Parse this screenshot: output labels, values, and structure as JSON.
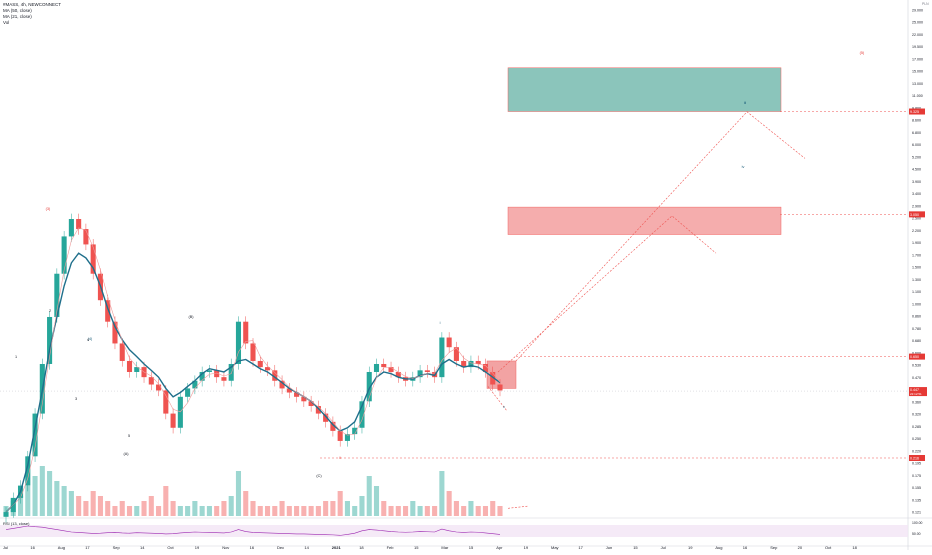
{
  "legend": {
    "symbol": "#MASS, 4h, NEWCONNECT",
    "ma1": "MA (50, close)",
    "ma2": "MA (21, close)",
    "vol": "Vol",
    "rsi": "RSI (13, close)"
  },
  "colors": {
    "up": "#26a69a",
    "down": "#ef5350",
    "ma_slow": "#1f6f8b",
    "ma_fast": "#ef9a9a",
    "target_box": "#7fbfb4",
    "resistance_box": "#f5a5a5",
    "dashed": "#ef5350",
    "rsi": "#9c27b0",
    "price_tag": "#e53935",
    "wave_label": "#1b5e7a"
  },
  "chart_data": {
    "type": "candlestick",
    "scale": "log",
    "x_tick_labels": [
      "Jul",
      "16",
      "Aug",
      "17",
      "Sep",
      "14",
      "Oct",
      "19",
      "Nov",
      "16",
      "Dec",
      "14",
      "2021",
      "18",
      "Feb",
      "15",
      "Mar",
      "15",
      "Apr",
      "19",
      "May",
      "17",
      "Jun",
      "15",
      "Jul",
      "19",
      "Aug",
      "16",
      "Sep",
      "20",
      "Oct",
      "18"
    ],
    "y_tick_labels": [
      "29.000",
      "25.000",
      "22.000",
      "19.500",
      "17.000",
      "15.000",
      "13.000",
      "11.000",
      "9.800",
      "8.600",
      "6.800",
      "6.000",
      "5.200",
      "4.500",
      "3.900",
      "3.400",
      "2.900",
      "2.500",
      "2.200",
      "1.900",
      "1.700",
      "1.500",
      "1.300",
      "1.100",
      "1.000",
      "0.860",
      "0.780",
      "0.680",
      "0.600",
      "0.530",
      "0.470",
      "0.410",
      "0.360",
      "0.320",
      "0.285",
      "0.250",
      "0.220",
      "0.195",
      "0.175",
      "0.155",
      "0.135",
      "0.121"
    ],
    "price_levels": [
      {
        "label": "9.325",
        "style": "dashed"
      },
      {
        "label": "3.050",
        "style": "dashed"
      },
      {
        "label": "0.650",
        "style": "dashed"
      },
      {
        "label": "0.216",
        "style": "dashed"
      }
    ],
    "current_price": {
      "label": "0.447",
      "sub": "22:12:51"
    },
    "rsi_ticks": [
      "100.00",
      "50.00"
    ],
    "currency": "PLN",
    "zones": [
      {
        "name": "target-zone",
        "from": 9.325,
        "to": 15.0
      },
      {
        "name": "resistance-zone",
        "from": 2.45,
        "to": 3.3
      },
      {
        "name": "entry-zone",
        "from": 0.46,
        "to": 0.62
      }
    ],
    "wave_labels": [
      "(3)",
      "(4)",
      "(A)",
      "(B)",
      "(C)",
      "1",
      "2",
      "3",
      "4",
      "5",
      "i",
      "ii",
      "iii",
      "iv",
      "v",
      "(5)"
    ],
    "price_path_note": "",
    "price_series": [
      0.12,
      0.14,
      0.16,
      0.22,
      0.35,
      0.6,
      1.0,
      1.6,
      2.4,
      2.9,
      2.6,
      2.2,
      1.6,
      1.2,
      0.95,
      0.75,
      0.62,
      0.55,
      0.58,
      0.52,
      0.48,
      0.45,
      0.35,
      0.3,
      0.42,
      0.46,
      0.5,
      0.55,
      0.56,
      0.52,
      0.5,
      0.6,
      0.95,
      0.75,
      0.62,
      0.58,
      0.56,
      0.5,
      0.46,
      0.44,
      0.42,
      0.4,
      0.38,
      0.35,
      0.32,
      0.29,
      0.26,
      0.28,
      0.3,
      0.4,
      0.55,
      0.6,
      0.58,
      0.55,
      0.52,
      0.5,
      0.52,
      0.56,
      0.55,
      0.52,
      0.8,
      0.72,
      0.62,
      0.58,
      0.62,
      0.6,
      0.55,
      0.48,
      0.45
    ],
    "ma50": [
      0.12,
      0.13,
      0.15,
      0.2,
      0.3,
      0.45,
      0.7,
      1.0,
      1.4,
      1.8,
      2.0,
      1.9,
      1.7,
      1.4,
      1.1,
      0.9,
      0.78,
      0.7,
      0.65,
      0.6,
      0.56,
      0.52,
      0.46,
      0.42,
      0.44,
      0.47,
      0.5,
      0.54,
      0.57,
      0.56,
      0.55,
      0.58,
      0.62,
      0.63,
      0.6,
      0.57,
      0.55,
      0.52,
      0.49,
      0.46,
      0.44,
      0.42,
      0.4,
      0.37,
      0.34,
      0.31,
      0.29,
      0.3,
      0.32,
      0.38,
      0.46,
      0.52,
      0.55,
      0.54,
      0.52,
      0.51,
      0.51,
      0.53,
      0.54,
      0.53,
      0.6,
      0.63,
      0.6,
      0.58,
      0.59,
      0.58,
      0.55,
      0.52,
      0.49
    ],
    "volume": [
      2,
      3,
      4,
      6,
      8,
      10,
      9,
      7,
      6,
      5,
      4,
      3,
      5,
      4,
      3,
      2,
      3,
      2,
      2,
      3,
      4,
      2,
      6,
      3,
      2,
      2,
      3,
      2,
      2,
      2,
      3,
      4,
      9,
      5,
      3,
      2,
      2,
      2,
      3,
      2,
      2,
      2,
      2,
      2,
      3,
      3,
      5,
      3,
      2,
      4,
      8,
      6,
      3,
      2,
      2,
      2,
      3,
      2,
      2,
      2,
      9,
      5,
      3,
      2,
      3,
      2,
      2,
      3,
      2
    ],
    "rsi": [
      60,
      65,
      70,
      75,
      72,
      70,
      65,
      60,
      55,
      50,
      48,
      46,
      44,
      45,
      47,
      48,
      46,
      45,
      47,
      46,
      45,
      44,
      42,
      43,
      46,
      48,
      50,
      49,
      48,
      47,
      46,
      50,
      60,
      52,
      48,
      47,
      46,
      45,
      44,
      43,
      42,
      42,
      41,
      40,
      39,
      38,
      36,
      40,
      45,
      55,
      60,
      58,
      55,
      52,
      50,
      49,
      50,
      52,
      51,
      50,
      62,
      55,
      50,
      48,
      50,
      49,
      46,
      43,
      40
    ]
  }
}
